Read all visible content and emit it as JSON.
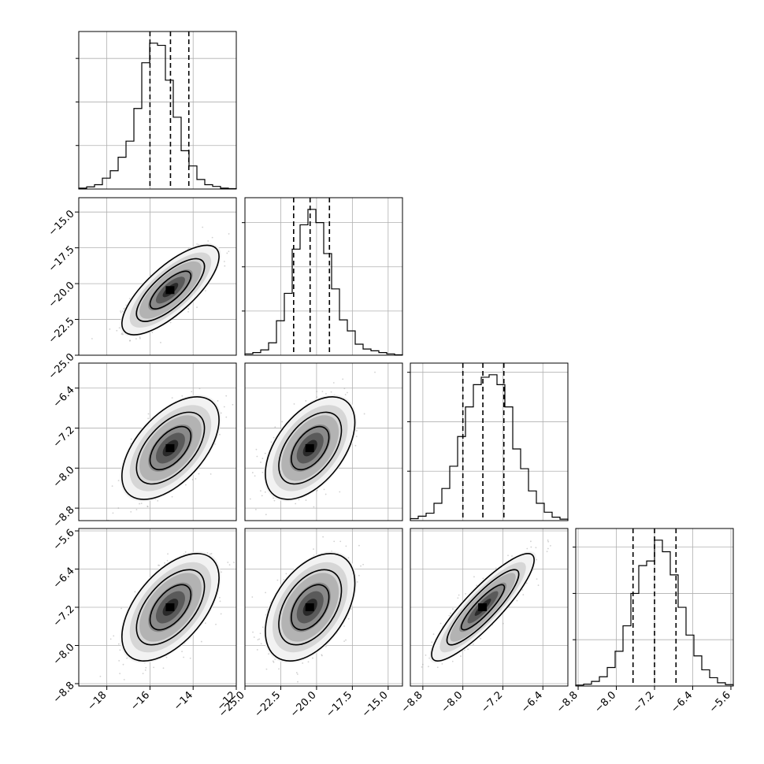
{
  "chart_data": {
    "type": "corner",
    "title": "",
    "parameters": [
      {
        "index": 0,
        "label": "",
        "range": [
          -19.3,
          -12.0
        ],
        "ticks": [
          -18,
          -16,
          -14,
          -12
        ],
        "quantiles": [
          -16.0,
          -15.05,
          -14.2
        ],
        "histogram": [
          0.2,
          0.5,
          1.0,
          2.5,
          4.2,
          7.3,
          11.0,
          18.5,
          29.0,
          33.5,
          33.0,
          25.0,
          16.5,
          8.8,
          5.3,
          2.2,
          1.0,
          0.6,
          0.2,
          0.1
        ]
      },
      {
        "index": 1,
        "label": "",
        "range": [
          -25.0,
          -14.0
        ],
        "ticks": [
          -25.0,
          -22.5,
          -20.0,
          -17.5,
          -15.0
        ],
        "quantiles": [
          -21.6,
          -20.45,
          -19.1
        ],
        "histogram": [
          0.3,
          0.6,
          1.2,
          2.8,
          7.8,
          14.0,
          24.0,
          29.5,
          33.0,
          30.0,
          23.0,
          15.0,
          8.0,
          5.5,
          2.5,
          1.4,
          1.0,
          0.6,
          0.3,
          0.1
        ]
      },
      {
        "index": 2,
        "label": "",
        "range": [
          -9.05,
          -5.9
        ],
        "ticks": [
          -8.8,
          -8.0,
          -7.2,
          -6.4
        ],
        "quantiles": [
          -8.0,
          -7.6,
          -7.18
        ],
        "histogram": [
          0.4,
          0.9,
          1.5,
          3.5,
          6.5,
          11.0,
          17.0,
          23.0,
          27.5,
          29.0,
          29.5,
          27.5,
          23.0,
          14.5,
          10.5,
          6.0,
          3.5,
          1.7,
          0.7,
          0.3
        ]
      },
      {
        "index": 3,
        "label": "",
        "range": [
          -8.85,
          -5.55
        ],
        "ticks": [
          -8.8,
          -8.0,
          -7.2,
          -6.4,
          -5.6
        ],
        "quantiles": [
          -7.65,
          -7.2,
          -6.75
        ],
        "histogram": [
          0.2,
          0.4,
          1.0,
          2.0,
          4.0,
          7.5,
          13.0,
          20.0,
          26.0,
          27.0,
          31.5,
          29.0,
          24.0,
          17.0,
          11.0,
          6.5,
          3.5,
          1.8,
          0.7,
          0.3
        ]
      }
    ],
    "y_tick_sets": [
      [],
      [
        -15.0,
        -17.5,
        -20.0,
        -22.5,
        -25.0
      ],
      [
        -6.4,
        -7.2,
        -8.0,
        -8.8
      ],
      [
        -5.6,
        -6.4,
        -7.2,
        -8.0,
        -8.8
      ]
    ],
    "x_tick_labels": [
      [
        "-18",
        "-16",
        "-14",
        "-12"
      ],
      [
        "-25.0",
        "-22.5",
        "-20.0",
        "-17.5",
        "-15.0"
      ],
      [
        "-8.8",
        "-8.0",
        "-7.2",
        "-6.4"
      ],
      [
        "-8.8",
        "-8.0",
        "-7.2",
        "-6.4",
        "-5.6"
      ]
    ],
    "y_tick_labels": [
      [],
      [
        "-15.0",
        "-17.5",
        "-20.0",
        "-22.5",
        "-25.0"
      ],
      [
        "-6.4",
        "-7.2",
        "-8.0",
        "-8.8"
      ],
      [
        "-5.6",
        "-6.4",
        "-7.2",
        "-8.0",
        "-8.8"
      ]
    ],
    "correlations": {
      "1,0": 0.75,
      "2,0": 0.55,
      "2,1": 0.5,
      "3,0": 0.55,
      "3,1": 0.45,
      "3,2": 0.88
    },
    "grid": true,
    "legend": "none"
  }
}
